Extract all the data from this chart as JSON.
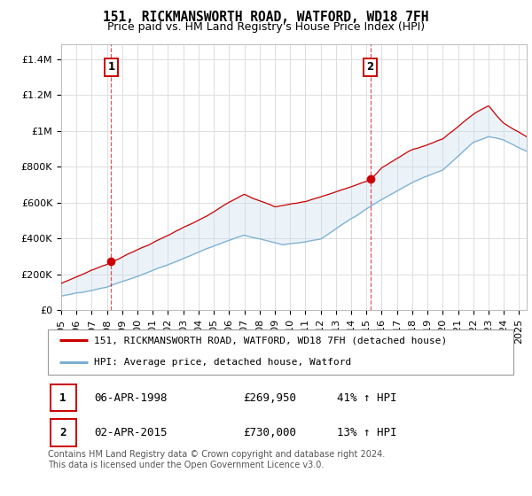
{
  "title": "151, RICKMANSWORTH ROAD, WATFORD, WD18 7FH",
  "subtitle": "Price paid vs. HM Land Registry's House Price Index (HPI)",
  "ylabel_ticks": [
    "£0",
    "£200K",
    "£400K",
    "£600K",
    "£800K",
    "£1M",
    "£1.2M",
    "£1.4M"
  ],
  "ytick_values": [
    0,
    200000,
    400000,
    600000,
    800000,
    1000000,
    1200000,
    1400000
  ],
  "ylim": [
    0,
    1480000
  ],
  "xlim_start": 1995.0,
  "xlim_end": 2025.5,
  "sale1_year": 1998.27,
  "sale1_price": 269950,
  "sale2_year": 2015.25,
  "sale2_price": 730000,
  "red_line_color": "#cc0000",
  "blue_line_color": "#7bafd4",
  "fill_color": "#c8dff0",
  "grid_color": "#dddddd",
  "annotation_box_color": "#cc0000",
  "legend_label_red": "151, RICKMANSWORTH ROAD, WATFORD, WD18 7FH (detached house)",
  "legend_label_blue": "HPI: Average price, detached house, Watford",
  "table_row1": [
    "1",
    "06-APR-1998",
    "£269,950",
    "41% ↑ HPI"
  ],
  "table_row2": [
    "2",
    "02-APR-2015",
    "£730,000",
    "13% ↑ HPI"
  ],
  "footnote": "Contains HM Land Registry data © Crown copyright and database right 2024.\nThis data is licensed under the Open Government Licence v3.0.",
  "title_fontsize": 10.5,
  "subtitle_fontsize": 9,
  "tick_fontsize": 8
}
